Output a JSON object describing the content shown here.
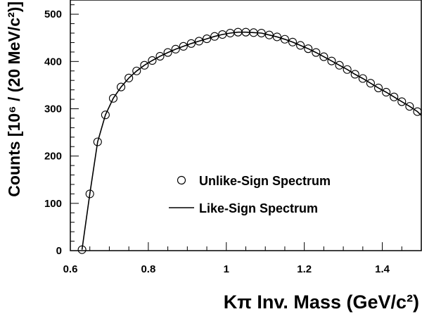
{
  "chart_data": {
    "type": "scatter",
    "xlabel": "Kπ Inv. Mass (GeV/c²)",
    "ylabel": "Counts [10⁶ / (20 MeV/c²)]",
    "xlim": [
      0.6,
      1.5
    ],
    "ylim": [
      0,
      530
    ],
    "x_ticks": [
      "0.6",
      "0.8",
      "1",
      "1.2",
      "1.4"
    ],
    "y_ticks": [
      "0",
      "100",
      "200",
      "300",
      "400",
      "500"
    ],
    "x_tick_values": [
      0.6,
      0.8,
      1.0,
      1.2,
      1.4
    ],
    "y_tick_values": [
      0,
      100,
      200,
      300,
      400,
      500
    ],
    "grid": false,
    "legend_position": "right",
    "series": [
      {
        "name": "Unlike-Sign Spectrum",
        "marker": "open-circle",
        "x": [
          0.63,
          0.65,
          0.67,
          0.69,
          0.71,
          0.73,
          0.75,
          0.77,
          0.79,
          0.81,
          0.83,
          0.85,
          0.87,
          0.89,
          0.91,
          0.93,
          0.95,
          0.97,
          0.99,
          1.01,
          1.03,
          1.05,
          1.07,
          1.09,
          1.11,
          1.13,
          1.15,
          1.17,
          1.19,
          1.21,
          1.23,
          1.25,
          1.27,
          1.29,
          1.31,
          1.33,
          1.35,
          1.37,
          1.39,
          1.41,
          1.43,
          1.45,
          1.47,
          1.49
        ],
        "y": [
          2,
          120,
          230,
          287,
          322,
          346,
          365,
          380,
          392,
          402,
          411,
          419,
          426,
          432,
          438,
          443,
          448,
          453,
          457,
          460,
          462,
          462,
          461,
          460,
          456,
          452,
          447,
          441,
          434,
          427,
          419,
          410,
          401,
          392,
          383,
          373,
          364,
          354,
          344,
          335,
          325,
          315,
          305,
          294
        ]
      },
      {
        "name": "Like-Sign Spectrum",
        "marker": "line",
        "x": [
          0.63,
          0.65,
          0.67,
          0.69,
          0.71,
          0.73,
          0.75,
          0.77,
          0.79,
          0.81,
          0.83,
          0.85,
          0.87,
          0.89,
          0.91,
          0.93,
          0.95,
          0.97,
          0.99,
          1.01,
          1.03,
          1.05,
          1.07,
          1.09,
          1.11,
          1.13,
          1.15,
          1.17,
          1.19,
          1.21,
          1.23,
          1.25,
          1.27,
          1.29,
          1.31,
          1.33,
          1.35,
          1.37,
          1.39,
          1.41,
          1.43,
          1.45,
          1.47,
          1.49,
          1.5
        ],
        "y": [
          2,
          120,
          230,
          287,
          322,
          346,
          365,
          380,
          392,
          402,
          411,
          419,
          426,
          432,
          438,
          443,
          448,
          453,
          457,
          460,
          462,
          462,
          461,
          460,
          456,
          452,
          447,
          441,
          434,
          427,
          419,
          410,
          401,
          392,
          383,
          373,
          364,
          354,
          344,
          335,
          325,
          315,
          305,
          294,
          286
        ]
      }
    ]
  }
}
